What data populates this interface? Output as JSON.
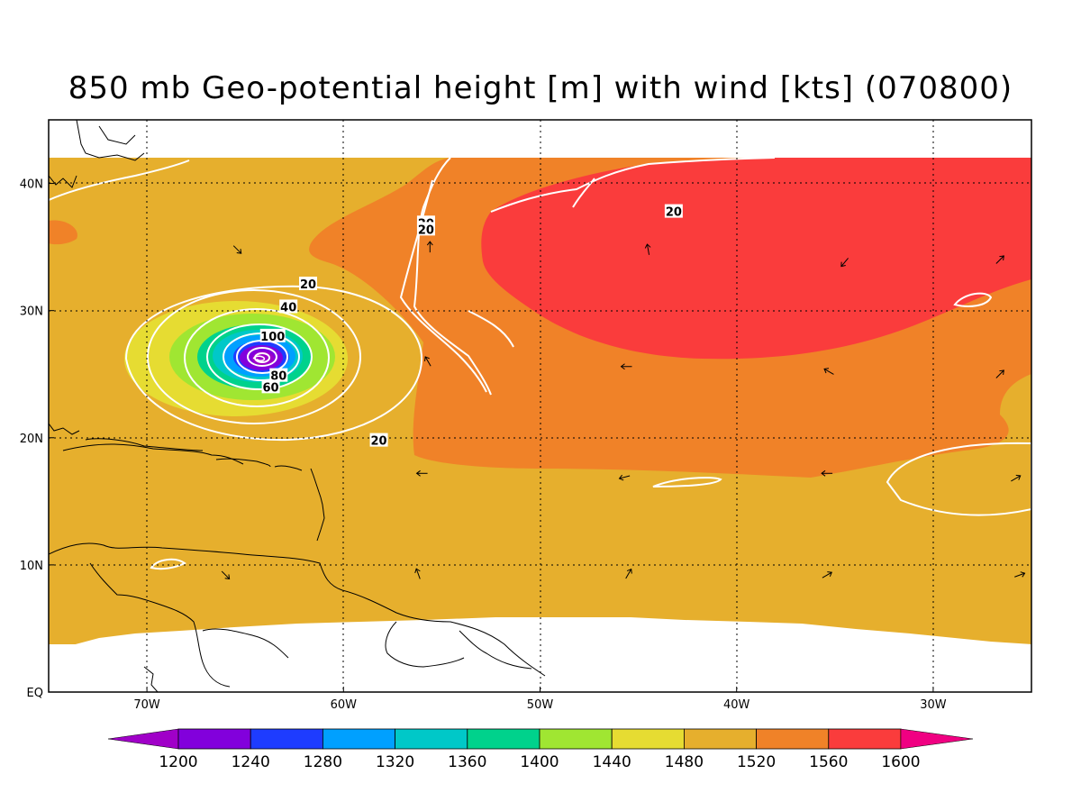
{
  "title": "850 mb Geo-potential height [m] with wind [kts] (070800)",
  "map": {
    "lon_range": [
      -75,
      -25
    ],
    "lat_range": [
      0,
      45
    ],
    "lon_ticks": [
      {
        "lon": -70,
        "label": "70W"
      },
      {
        "lon": -60,
        "label": "60W"
      },
      {
        "lon": -50,
        "label": "50W"
      },
      {
        "lon": -40,
        "label": "40W"
      },
      {
        "lon": -30,
        "label": "30W"
      }
    ],
    "lat_ticks": [
      {
        "lat": 40,
        "label": "40N"
      },
      {
        "lat": 30,
        "label": "30N"
      },
      {
        "lat": 20,
        "label": "20N"
      },
      {
        "lat": 10,
        "label": "10N"
      },
      {
        "lat": 0,
        "label": "EQ"
      }
    ],
    "storm_center": {
      "lon": -64.3,
      "lat": 26.2
    },
    "contour_labels": [
      {
        "text": "20",
        "lon": -61.8,
        "lat": 32.1
      },
      {
        "text": "40",
        "lon": -62.8,
        "lat": 30.3
      },
      {
        "text": "100",
        "lon": -63.6,
        "lat": 28.0
      },
      {
        "text": "80",
        "lon": -63.3,
        "lat": 24.9
      },
      {
        "text": "60",
        "lon": -63.7,
        "lat": 24.0
      },
      {
        "text": "20",
        "lon": -58.2,
        "lat": 19.8
      },
      {
        "text": "20",
        "lon": -55.8,
        "lat": 36.9
      },
      {
        "text": "20",
        "lon": -55.8,
        "lat": 36.4
      },
      {
        "text": "20",
        "lon": -43.2,
        "lat": 37.8
      }
    ],
    "wind_arrows": [
      {
        "lon": -65.4,
        "lat": 34.8,
        "dir": 135
      },
      {
        "lon": -55.6,
        "lat": 35.0,
        "dir": 0
      },
      {
        "lon": -44.5,
        "lat": 34.8,
        "dir": 350
      },
      {
        "lon": -34.5,
        "lat": 33.8,
        "dir": 220
      },
      {
        "lon": -26.6,
        "lat": 34.0,
        "dir": 45
      },
      {
        "lon": -55.7,
        "lat": 26.0,
        "dir": 330
      },
      {
        "lon": -45.6,
        "lat": 25.6,
        "dir": 270
      },
      {
        "lon": -35.3,
        "lat": 25.2,
        "dir": 300
      },
      {
        "lon": -26.6,
        "lat": 25.0,
        "dir": 45
      },
      {
        "lon": -56.0,
        "lat": 17.2,
        "dir": 270
      },
      {
        "lon": -45.7,
        "lat": 16.9,
        "dir": 255
      },
      {
        "lon": -35.4,
        "lat": 17.2,
        "dir": 270
      },
      {
        "lon": -25.8,
        "lat": 16.8,
        "dir": 60
      },
      {
        "lon": -66.0,
        "lat": 9.2,
        "dir": 135
      },
      {
        "lon": -56.2,
        "lat": 9.3,
        "dir": 340
      },
      {
        "lon": -45.5,
        "lat": 9.3,
        "dir": 30
      },
      {
        "lon": -35.4,
        "lat": 9.2,
        "dir": 60
      },
      {
        "lon": -25.6,
        "lat": 9.2,
        "dir": 70
      }
    ]
  },
  "colorbar": {
    "labels": [
      "1200",
      "1240",
      "1280",
      "1320",
      "1360",
      "1400",
      "1440",
      "1480",
      "1520",
      "1560",
      "1600"
    ],
    "colors": [
      "#a000c8",
      "#8200dc",
      "#1e3cff",
      "#00a0ff",
      "#00c8c8",
      "#00d28c",
      "#a0e632",
      "#e6dc32",
      "#e6af2d",
      "#f08228",
      "#fa3c3c",
      "#f00082"
    ]
  }
}
